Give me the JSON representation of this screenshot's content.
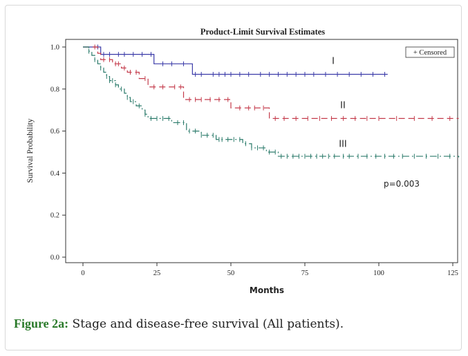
{
  "figure": {
    "caption_label": "Figure 2a:",
    "caption_text": " Stage and disease-free survival (All patients)."
  },
  "chart_data": {
    "type": "line",
    "title": "Product-Limit Survival Estimates",
    "xlabel": "Months",
    "ylabel": "Survival Probability",
    "xlim": [
      0,
      125
    ],
    "ylim": [
      0,
      1.0
    ],
    "x_ticks": [
      "0",
      "25",
      "50",
      "75",
      "100",
      "125"
    ],
    "y_ticks": [
      "0.0",
      "0.2",
      "0.4",
      "0.6",
      "0.8",
      "1.0"
    ],
    "legend": {
      "label": "+ Censored",
      "placement": "top-right"
    },
    "annotation": "p=0.003",
    "grid": false,
    "series": [
      {
        "name": "I",
        "color": "#3a3aa8",
        "dash": "solid",
        "steps": [
          [
            0,
            1.0
          ],
          [
            6,
            0.965
          ],
          [
            24,
            0.92
          ],
          [
            37,
            0.87
          ],
          [
            103,
            0.87
          ]
        ],
        "censored": [
          5,
          7,
          9,
          12,
          14,
          17,
          20,
          23,
          27,
          30,
          34,
          38,
          40,
          44,
          46,
          48,
          50,
          53,
          56,
          60,
          63,
          66,
          69,
          72,
          75,
          78,
          82,
          86,
          90,
          94,
          98,
          102
        ]
      },
      {
        "name": "II",
        "color": "#c43a4a",
        "dash": "dashed",
        "steps": [
          [
            0,
            1.0
          ],
          [
            5,
            0.97
          ],
          [
            6,
            0.94
          ],
          [
            10,
            0.92
          ],
          [
            13,
            0.9
          ],
          [
            15,
            0.88
          ],
          [
            19,
            0.85
          ],
          [
            22,
            0.81
          ],
          [
            34,
            0.75
          ],
          [
            50,
            0.71
          ],
          [
            63,
            0.66
          ],
          [
            127,
            0.66
          ]
        ],
        "censored": [
          4,
          7,
          9,
          11,
          12,
          14,
          16,
          18,
          21,
          24,
          27,
          31,
          33,
          36,
          38,
          40,
          43,
          46,
          49,
          53,
          56,
          58,
          61,
          65,
          68,
          72,
          76,
          80,
          84,
          88,
          92,
          96,
          100,
          106,
          112,
          118,
          124
        ]
      },
      {
        "name": "III",
        "color": "#2a7a6a",
        "dash": "dashdot",
        "steps": [
          [
            0,
            1.0
          ],
          [
            2,
            0.98
          ],
          [
            3,
            0.96
          ],
          [
            4,
            0.94
          ],
          [
            5,
            0.92
          ],
          [
            6,
            0.9
          ],
          [
            7,
            0.88
          ],
          [
            8,
            0.86
          ],
          [
            9,
            0.84
          ],
          [
            11,
            0.82
          ],
          [
            12,
            0.8
          ],
          [
            14,
            0.78
          ],
          [
            15,
            0.76
          ],
          [
            16,
            0.74
          ],
          [
            18,
            0.72
          ],
          [
            20,
            0.7
          ],
          [
            21,
            0.68
          ],
          [
            22,
            0.66
          ],
          [
            30,
            0.64
          ],
          [
            35,
            0.6
          ],
          [
            40,
            0.58
          ],
          [
            45,
            0.56
          ],
          [
            54,
            0.54
          ],
          [
            57,
            0.52
          ],
          [
            62,
            0.5
          ],
          [
            66,
            0.48
          ],
          [
            127,
            0.475
          ]
        ],
        "censored": [
          2,
          4,
          6,
          8,
          9,
          10,
          11,
          13,
          15,
          17,
          19,
          21,
          23,
          25,
          27,
          29,
          32,
          34,
          36,
          38,
          40,
          42,
          44,
          46,
          47,
          49,
          51,
          53,
          55,
          57,
          59,
          61,
          63,
          65,
          67,
          69,
          71,
          73,
          75,
          77,
          79,
          81,
          83,
          85,
          88,
          90,
          93,
          96,
          99,
          102,
          105,
          108,
          112,
          116,
          120,
          124
        ]
      }
    ]
  }
}
